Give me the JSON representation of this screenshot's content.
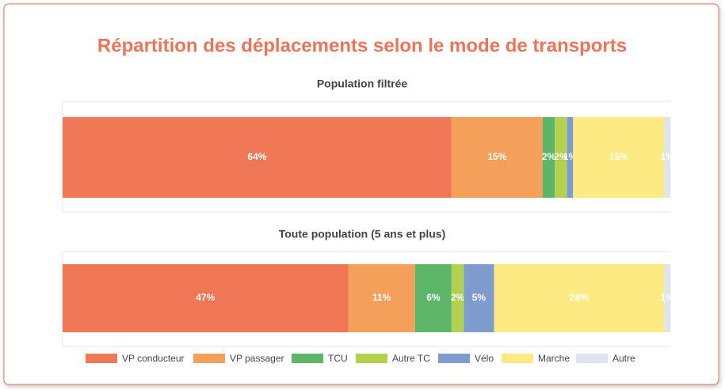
{
  "chart_data": {
    "type": "stacked-bar-horizontal",
    "title": "Répartition des déplacements selon le mode de transports",
    "categories": [
      "Population filtrée",
      "Toute population (5 ans et plus)"
    ],
    "xlim": [
      0,
      100
    ],
    "series": [
      {
        "name": "VP conducteur",
        "color": "#f07857",
        "values": [
          64,
          47
        ],
        "value_labels": [
          "64%",
          "47%"
        ]
      },
      {
        "name": "VP passager",
        "color": "#f4a05a",
        "values": [
          15,
          11
        ],
        "value_labels": [
          "15%",
          "11%"
        ]
      },
      {
        "name": "TCU",
        "color": "#5db56a",
        "values": [
          2,
          6
        ],
        "value_labels": [
          "2%",
          "6%"
        ]
      },
      {
        "name": "Autre TC",
        "color": "#b2d14f",
        "values": [
          2,
          2
        ],
        "value_labels": [
          "2%",
          "2%"
        ]
      },
      {
        "name": "Vélo",
        "color": "#7f9ccf",
        "values": [
          1,
          5
        ],
        "value_labels": [
          "1%",
          "5%"
        ]
      },
      {
        "name": "Marche",
        "color": "#fdea82",
        "values": [
          15,
          28
        ],
        "value_labels": [
          "15%",
          "28%"
        ]
      },
      {
        "name": "Autre",
        "color": "#dfe5f0",
        "values": [
          1,
          1
        ],
        "value_labels": [
          "1%",
          "1%"
        ]
      }
    ]
  }
}
